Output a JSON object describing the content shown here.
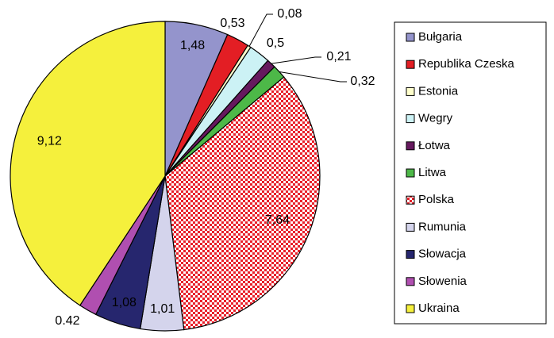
{
  "chart_data": {
    "type": "pie",
    "categories": [
      "Bułgaria",
      "Republika Czeska",
      "Estonia",
      "Wegry",
      "Łotwa",
      "Litwa",
      "Polska",
      "Rumunia",
      "Słowacja",
      "Słowenia",
      "Ukraina"
    ],
    "values": [
      1.48,
      0.53,
      0.08,
      0.5,
      0.21,
      0.32,
      7.64,
      1.01,
      1.08,
      0.42,
      9.12
    ],
    "value_labels": [
      "1,48",
      "0,53",
      "0,08",
      "0,5",
      "0,21",
      "0,32",
      "7,64",
      "1,01",
      "1,08",
      "0.42",
      "9,12"
    ],
    "colors": [
      "#9494cc",
      "#e31e24",
      "#ffffcc",
      "#ccf2f5",
      "#66195e",
      "#4db848",
      "#e8202a",
      "#d4d4ec",
      "#26266e",
      "#b04fb0",
      "#f5f03c"
    ],
    "patterns": [
      null,
      null,
      null,
      null,
      null,
      null,
      "dots",
      null,
      null,
      null,
      null
    ],
    "legend": "right"
  }
}
